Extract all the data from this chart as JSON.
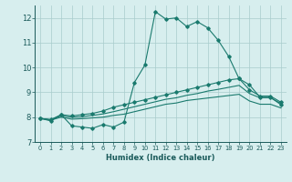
{
  "xlabel": "Humidex (Indice chaleur)",
  "ylabel": "",
  "background_color": "#d7eeee",
  "grid_color": "#a8cccc",
  "line_color": "#1a7a6e",
  "xlim": [
    -0.5,
    23.5
  ],
  "ylim": [
    7,
    12.5
  ],
  "yticks": [
    7,
    8,
    9,
    10,
    11,
    12
  ],
  "xticks": [
    0,
    1,
    2,
    3,
    4,
    5,
    6,
    7,
    8,
    9,
    10,
    11,
    12,
    13,
    14,
    15,
    16,
    17,
    18,
    19,
    20,
    21,
    22,
    23
  ],
  "line1_x": [
    0,
    1,
    2,
    3,
    4,
    5,
    6,
    7,
    8,
    9,
    10,
    11,
    12,
    13,
    14,
    15,
    16,
    17,
    18,
    19,
    20,
    21,
    22,
    23
  ],
  "line1_y": [
    7.95,
    7.85,
    8.1,
    7.65,
    7.6,
    7.55,
    7.7,
    7.6,
    7.8,
    9.4,
    10.1,
    12.25,
    11.95,
    12.0,
    11.65,
    11.85,
    11.6,
    11.1,
    10.45,
    9.55,
    9.3,
    8.8,
    8.8,
    8.5
  ],
  "line2_x": [
    0,
    1,
    2,
    3,
    4,
    5,
    6,
    7,
    8,
    9,
    10,
    11,
    12,
    13,
    14,
    15,
    16,
    17,
    18,
    19,
    20,
    21,
    22,
    23
  ],
  "line2_y": [
    7.95,
    7.9,
    8.1,
    8.05,
    8.1,
    8.15,
    8.25,
    8.4,
    8.5,
    8.6,
    8.7,
    8.8,
    8.9,
    9.0,
    9.1,
    9.2,
    9.3,
    9.4,
    9.5,
    9.55,
    9.1,
    8.85,
    8.85,
    8.6
  ],
  "line3_x": [
    0,
    1,
    2,
    3,
    4,
    5,
    6,
    7,
    8,
    9,
    10,
    11,
    12,
    13,
    14,
    15,
    16,
    17,
    18,
    19,
    20,
    21,
    22,
    23
  ],
  "line3_y": [
    7.95,
    7.9,
    8.05,
    8.0,
    8.02,
    8.07,
    8.13,
    8.22,
    8.32,
    8.42,
    8.52,
    8.62,
    8.72,
    8.78,
    8.88,
    8.95,
    9.05,
    9.12,
    9.2,
    9.28,
    8.95,
    8.78,
    8.78,
    8.55
  ],
  "line4_x": [
    0,
    1,
    2,
    3,
    4,
    5,
    6,
    7,
    8,
    9,
    10,
    11,
    12,
    13,
    14,
    15,
    16,
    17,
    18,
    19,
    20,
    21,
    22,
    23
  ],
  "line4_y": [
    7.95,
    7.88,
    8.0,
    7.92,
    7.94,
    7.97,
    8.0,
    8.07,
    8.12,
    8.22,
    8.32,
    8.42,
    8.52,
    8.57,
    8.67,
    8.72,
    8.77,
    8.82,
    8.87,
    8.92,
    8.65,
    8.52,
    8.52,
    8.37
  ]
}
